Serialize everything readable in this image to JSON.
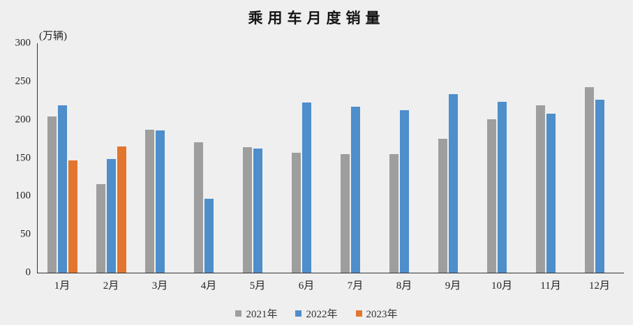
{
  "title": "乘用车月度销量",
  "unit_label": "(万辆)",
  "colors": {
    "background": "#efefef",
    "axis": "#333333",
    "text": "#222222",
    "series_2021": "#9e9e9e",
    "series_2022": "#4e8ecb",
    "series_2023": "#e2762f"
  },
  "chart_data": {
    "type": "bar",
    "title": "乘用车月度销量",
    "ylabel": "(万辆)",
    "xlabel": "",
    "categories": [
      "1月",
      "2月",
      "3月",
      "4月",
      "5月",
      "6月",
      "7月",
      "8月",
      "9月",
      "10月",
      "11月",
      "12月"
    ],
    "series": [
      {
        "name": "2021年",
        "color": "#9e9e9e",
        "values": [
          204.5,
          115.6,
          187.4,
          170.4,
          164.6,
          156.9,
          155.1,
          155.2,
          175.1,
          200.7,
          219.2,
          242.2
        ]
      },
      {
        "name": "2022年",
        "color": "#4e8ecb",
        "values": [
          218.6,
          148.7,
          186.4,
          96.5,
          162.3,
          222.2,
          217.4,
          212.5,
          233.2,
          223.1,
          207.5,
          226.3
        ]
      },
      {
        "name": "2023年",
        "color": "#e2762f",
        "values": [
          146.9,
          165.3,
          null,
          null,
          null,
          null,
          null,
          null,
          null,
          null,
          null,
          null
        ]
      }
    ],
    "ylim": [
      0,
      300
    ],
    "yticks": [
      0,
      50,
      100,
      150,
      200,
      250,
      300
    ],
    "grid": false,
    "legend_position": "bottom"
  }
}
